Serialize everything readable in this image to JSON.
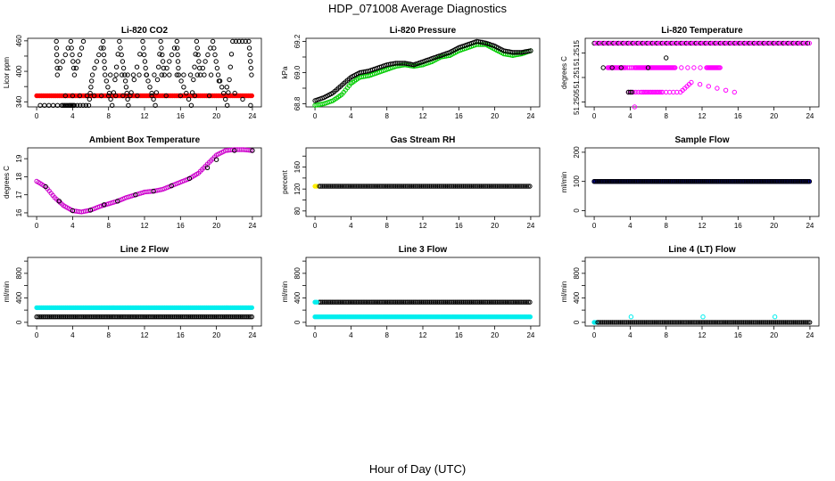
{
  "figure": {
    "title": "HDP_071008  Average Diagnostics",
    "xlabel": "Hour of Day (UTC)"
  },
  "chart_data": [
    {
      "type": "scatter",
      "title": "Li-820 CO2",
      "ylabel": "Licor ppm",
      "xlim": [
        -1,
        25
      ],
      "ylim": [
        330,
        465
      ],
      "xticks": [
        0,
        4,
        8,
        12,
        16,
        20,
        24
      ],
      "yticks": [
        340,
        370,
        400,
        430,
        460
      ],
      "yticklabels": [
        "340",
        "",
        "400",
        "",
        "460"
      ],
      "series": [
        {
          "name": "red",
          "color": "#ff0000",
          "marker": "filled",
          "x": [
            0,
            24
          ],
          "y": [
            352,
            352
          ],
          "mode": "band"
        },
        {
          "name": "black",
          "color": "#000000",
          "marker": "open",
          "x": [
            2.2,
            2.3,
            3.8,
            4.2,
            5.2,
            0.4,
            2.8,
            3.6,
            4.2,
            5.8,
            6.2,
            7.4,
            7.6,
            8.4,
            9.2,
            9.8,
            10.2,
            11.8,
            12.2,
            13.2,
            13.8,
            14.2,
            15.6,
            15.8,
            17.2,
            17.8,
            18.2,
            19.6,
            20.2,
            21.2,
            21.8,
            23.6,
            23.9,
            8.2,
            11.4,
            15.6,
            19.4,
            23.8,
            3.2,
            7.2,
            11.2,
            19.2
          ],
          "y": [
            459,
            393,
            459,
            393,
            459,
            333,
            333,
            333,
            333,
            333,
            393,
            459,
            393,
            333,
            459,
            393,
            333,
            459,
            393,
            333,
            459,
            393,
            459,
            393,
            333,
            459,
            393,
            459,
            393,
            333,
            459,
            459,
            393,
            393,
            393,
            393,
            393,
            333,
            352,
            352,
            352,
            352
          ]
        }
      ]
    },
    {
      "type": "scatter",
      "title": "Li-820 Pressure",
      "ylabel": "kPa",
      "xlim": [
        -1,
        25
      ],
      "ylim": [
        68.78,
        69.22
      ],
      "xticks": [
        0,
        4,
        8,
        12,
        16,
        20,
        24
      ],
      "yticks": [
        68.8,
        68.9,
        69.0,
        69.1,
        69.2
      ],
      "yticklabels": [
        "68.8",
        "",
        "69.0",
        "",
        "69.2"
      ],
      "series": [
        {
          "name": "green",
          "color": "#00cc00",
          "marker": "open",
          "x": [
            0,
            1,
            2,
            3,
            4,
            5,
            6,
            7,
            8,
            9,
            10,
            11,
            12,
            13,
            14,
            15,
            16,
            17,
            18,
            19,
            20,
            21,
            22,
            23,
            24
          ],
          "y": [
            68.79,
            68.8,
            68.82,
            68.86,
            68.93,
            68.97,
            68.98,
            69.0,
            69.02,
            69.04,
            69.05,
            69.04,
            69.05,
            69.07,
            69.1,
            69.11,
            69.14,
            69.16,
            69.18,
            69.18,
            69.15,
            69.12,
            69.11,
            69.12,
            69.14
          ]
        },
        {
          "name": "black",
          "color": "#000000",
          "marker": "open",
          "x": [
            0,
            1,
            2,
            3,
            4,
            5,
            6,
            7,
            8,
            9,
            10,
            11,
            12,
            13,
            14,
            15,
            16,
            17,
            18,
            19,
            20,
            21,
            22,
            23,
            24
          ],
          "y": [
            68.82,
            68.84,
            68.87,
            68.92,
            68.97,
            69.0,
            69.01,
            69.03,
            69.05,
            69.06,
            69.06,
            69.05,
            69.07,
            69.09,
            69.11,
            69.13,
            69.16,
            69.18,
            69.2,
            69.19,
            69.17,
            69.14,
            69.13,
            69.13,
            69.14
          ]
        }
      ]
    },
    {
      "type": "scatter",
      "title": "Li-820 Temperature",
      "ylabel": "degrees C",
      "xlim": [
        -1,
        25
      ],
      "ylim": [
        51.2504,
        51.2518
      ],
      "xticks": [
        0,
        4,
        8,
        12,
        16,
        20,
        24
      ],
      "yticks": [
        51.2505,
        51.251,
        51.2515
      ],
      "yticklabels": [
        "51.2505",
        "51.251",
        "51.2515"
      ],
      "series": [
        {
          "name": "magenta",
          "color": "#ff00ff",
          "marker": "open",
          "x": [
            1.5,
            2,
            2.5,
            3,
            3.5,
            4.5,
            5,
            5.5,
            6,
            6.5,
            7,
            7.5,
            8,
            8.5,
            9,
            12.5,
            13,
            13.5,
            14,
            3.8,
            5.2,
            6.0,
            6.8,
            7.6,
            9.6,
            10.8,
            15.6,
            4.5
          ],
          "y": [
            51.2512,
            51.2512,
            51.2512,
            51.2512,
            51.2512,
            51.2512,
            51.2512,
            51.2512,
            51.2512,
            51.2512,
            51.2512,
            51.2512,
            51.2512,
            51.2512,
            51.2512,
            51.2512,
            51.2512,
            51.2512,
            51.2512,
            51.2507,
            51.2507,
            51.2507,
            51.2507,
            51.2507,
            51.2507,
            51.2509,
            51.2507,
            51.2504
          ]
        },
        {
          "name": "black",
          "color": "#000000",
          "marker": "open",
          "x": [
            4,
            8,
            3.8,
            4.2,
            1,
            2,
            3,
            6
          ],
          "y": [
            51.2507,
            51.2514,
            51.2507,
            51.2507,
            51.2512,
            51.2512,
            51.2512,
            51.2512
          ]
        },
        {
          "name": "top-band",
          "color": "#ff00ff",
          "marker": "open",
          "x": [
            0,
            24
          ],
          "y": [
            51.2517,
            51.2517
          ],
          "mode": "band-mixed"
        }
      ]
    },
    {
      "type": "scatter",
      "title": "Ambient Box Temperature",
      "ylabel": "degrees C",
      "xlim": [
        -1,
        25
      ],
      "ylim": [
        15.8,
        19.6
      ],
      "xticks": [
        0,
        4,
        8,
        12,
        16,
        20,
        24
      ],
      "yticks": [
        16,
        17,
        18,
        19
      ],
      "yticklabels": [
        "16",
        "17",
        "18",
        "19"
      ],
      "series": [
        {
          "name": "magenta",
          "color": "#cc00cc",
          "marker": "open",
          "x": [
            0,
            1,
            2,
            3,
            4,
            5,
            6,
            7,
            8,
            9,
            10,
            11,
            12,
            13,
            14,
            15,
            16,
            17,
            18,
            19,
            20,
            21,
            22,
            23,
            24
          ],
          "y": [
            17.75,
            17.45,
            16.85,
            16.4,
            16.12,
            16.05,
            16.15,
            16.35,
            16.5,
            16.65,
            16.85,
            17.0,
            17.15,
            17.2,
            17.3,
            17.5,
            17.7,
            17.9,
            18.2,
            18.7,
            19.2,
            19.45,
            19.5,
            19.5,
            19.45
          ]
        },
        {
          "name": "black",
          "color": "#000000",
          "marker": "open",
          "x": [
            1,
            2.5,
            4,
            6,
            7.5,
            9,
            11,
            13,
            15,
            17,
            19,
            20,
            22,
            24
          ],
          "y": [
            17.45,
            16.65,
            16.12,
            16.15,
            16.45,
            16.65,
            17.0,
            17.2,
            17.5,
            17.9,
            18.5,
            18.95,
            19.45,
            19.45
          ]
        }
      ]
    },
    {
      "type": "scatter",
      "title": "Gas Stream RH",
      "ylabel": "percent",
      "xlim": [
        -1,
        25
      ],
      "ylim": [
        70,
        195
      ],
      "xticks": [
        0,
        4,
        8,
        12,
        16,
        20,
        24
      ],
      "yticks": [
        80,
        100,
        120,
        140,
        160,
        180
      ],
      "yticklabels": [
        "80",
        "",
        "120",
        "",
        "160",
        ""
      ],
      "series": [
        {
          "name": "yellow",
          "color": "#ffee00",
          "marker": "filled",
          "x": [
            0,
            0.2
          ],
          "y": [
            125,
            125
          ]
        },
        {
          "name": "black",
          "color": "#000000",
          "marker": "open",
          "x": [
            0.5,
            24
          ],
          "y": [
            125,
            125
          ],
          "mode": "band"
        }
      ]
    },
    {
      "type": "scatter",
      "title": "Sample Flow",
      "ylabel": "ml/min",
      "xlim": [
        -1,
        25
      ],
      "ylim": [
        -20,
        215
      ],
      "xticks": [
        0,
        4,
        8,
        12,
        16,
        20,
        24
      ],
      "yticks": [
        0,
        100,
        200
      ],
      "yticklabels": [
        "0",
        "100",
        "200"
      ],
      "series": [
        {
          "name": "blue",
          "color": "#0000cc",
          "marker": "filled",
          "x": [
            0,
            24
          ],
          "y": [
            100,
            100
          ],
          "mode": "band"
        },
        {
          "name": "black",
          "color": "#000000",
          "marker": "open",
          "x": [
            0,
            24
          ],
          "y": [
            100,
            100
          ],
          "mode": "band"
        }
      ]
    },
    {
      "type": "scatter",
      "title": "Line 2 Flow",
      "ylabel": "ml/min",
      "xlim": [
        -1,
        25
      ],
      "ylim": [
        -60,
        1060
      ],
      "xticks": [
        0,
        4,
        8,
        12,
        16,
        20,
        24
      ],
      "yticks": [
        0,
        200,
        400,
        600,
        800,
        1000
      ],
      "yticklabels": [
        "0",
        "",
        "400",
        "",
        "800",
        ""
      ],
      "series": [
        {
          "name": "cyan",
          "color": "#00eeee",
          "marker": "filled",
          "x": [
            0,
            24
          ],
          "y": [
            240,
            240
          ],
          "mode": "band"
        },
        {
          "name": "black",
          "color": "#000000",
          "marker": "open",
          "x": [
            0,
            24
          ],
          "y": [
            90,
            90
          ],
          "mode": "band"
        }
      ]
    },
    {
      "type": "scatter",
      "title": "Line 3 Flow",
      "ylabel": "ml/min",
      "xlim": [
        -1,
        25
      ],
      "ylim": [
        -60,
        1060
      ],
      "xticks": [
        0,
        4,
        8,
        12,
        16,
        20,
        24
      ],
      "yticks": [
        0,
        200,
        400,
        600,
        800,
        1000
      ],
      "yticklabels": [
        "0",
        "",
        "400",
        "",
        "800",
        ""
      ],
      "series": [
        {
          "name": "black",
          "color": "#000000",
          "marker": "open",
          "x": [
            0.5,
            24
          ],
          "y": [
            330,
            330
          ],
          "mode": "band"
        },
        {
          "name": "cyan-top",
          "color": "#00eeee",
          "marker": "filled",
          "x": [
            0,
            0.2
          ],
          "y": [
            330,
            330
          ]
        },
        {
          "name": "cyan",
          "color": "#00eeee",
          "marker": "filled",
          "x": [
            0,
            24
          ],
          "y": [
            90,
            90
          ],
          "mode": "band"
        }
      ]
    },
    {
      "type": "scatter",
      "title": "Line 4 (LT) Flow",
      "ylabel": "ml/min",
      "xlim": [
        -1,
        25
      ],
      "ylim": [
        -60,
        1060
      ],
      "xticks": [
        0,
        4,
        8,
        12,
        16,
        20,
        24
      ],
      "yticks": [
        0,
        200,
        400,
        600,
        800,
        1000
      ],
      "yticklabels": [
        "0",
        "",
        "400",
        "",
        "800",
        ""
      ],
      "series": [
        {
          "name": "cyan",
          "color": "#00eeee",
          "marker": "filled",
          "x": [
            0,
            0.2
          ],
          "y": [
            0,
            0
          ]
        },
        {
          "name": "black",
          "color": "#000000",
          "marker": "open",
          "x": [
            0.4,
            24
          ],
          "y": [
            0,
            0
          ],
          "mode": "band"
        },
        {
          "name": "cyan-spikes",
          "color": "#00eeee",
          "marker": "open",
          "x": [
            4.1,
            12.1,
            20.1
          ],
          "y": [
            90,
            90,
            90
          ]
        }
      ]
    }
  ]
}
